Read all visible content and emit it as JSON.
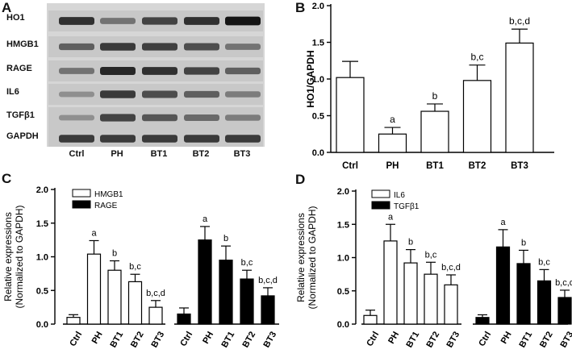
{
  "panels": {
    "A": {
      "letter": "A",
      "rows": [
        "HO1",
        "HMGB1",
        "RAGE",
        "IL6",
        "TGFβ1",
        "GAPDH"
      ],
      "lanes": [
        "Ctrl",
        "PH",
        "BT1",
        "BT2",
        "BT3"
      ],
      "band_intensity": [
        [
          0.8,
          0.45,
          0.7,
          0.8,
          0.95
        ],
        [
          0.55,
          0.75,
          0.72,
          0.65,
          0.45
        ],
        [
          0.45,
          0.85,
          0.8,
          0.7,
          0.55
        ],
        [
          0.3,
          0.75,
          0.65,
          0.55,
          0.4
        ],
        [
          0.3,
          0.7,
          0.6,
          0.5,
          0.4
        ],
        [
          0.75,
          0.75,
          0.75,
          0.75,
          0.75
        ]
      ]
    },
    "B": {
      "letter": "B"
    },
    "C": {
      "letter": "C"
    },
    "D": {
      "letter": "D"
    }
  },
  "chart_data": [
    {
      "id": "B",
      "type": "bar",
      "categories": [
        "Ctrl",
        "PH",
        "BT1",
        "BT2",
        "BT3"
      ],
      "series": [
        {
          "values": [
            1.02,
            0.25,
            0.56,
            0.98,
            1.49
          ],
          "errors": [
            0.22,
            0.09,
            0.1,
            0.21,
            0.19
          ],
          "color": "#ffffff"
        }
      ],
      "annotations": [
        "",
        "a",
        "b",
        "b,c",
        "b,c,d"
      ],
      "title": "",
      "xlabel": "",
      "ylabel": "HO1/GAPDH",
      "ylim": [
        0,
        2.0
      ],
      "yticks": [
        "0.0",
        "0.5",
        "1.0",
        "1.5",
        "2.0"
      ],
      "grid": false
    },
    {
      "id": "C",
      "type": "bar",
      "categories": [
        "Ctrl",
        "PH",
        "BT1",
        "BT2",
        "BT3"
      ],
      "series": [
        {
          "name": "HMGB1",
          "values": [
            0.1,
            1.04,
            0.8,
            0.63,
            0.25
          ],
          "errors": [
            0.04,
            0.2,
            0.14,
            0.11,
            0.1
          ],
          "color": "#ffffff",
          "annotations": [
            "",
            "a",
            "b",
            "b,c",
            "b,c,d"
          ]
        },
        {
          "name": "RAGE",
          "values": [
            0.15,
            1.25,
            0.95,
            0.67,
            0.42
          ],
          "errors": [
            0.09,
            0.2,
            0.21,
            0.13,
            0.12
          ],
          "color": "#000000",
          "annotations": [
            "",
            "a",
            "b",
            "b,c",
            "b,c,d"
          ]
        }
      ],
      "title": "",
      "xlabel": "",
      "ylabel": [
        "Relative expressions",
        "(Normalized to GAPDH)"
      ],
      "ylim": [
        0,
        2.0
      ],
      "yticks": [
        "0.0",
        "0.5",
        "1.0",
        "1.5",
        "2.0"
      ],
      "legend": "top-left",
      "grid": false
    },
    {
      "id": "D",
      "type": "bar",
      "categories": [
        "Ctrl",
        "PH",
        "BT1",
        "BT2",
        "BT3"
      ],
      "series": [
        {
          "name": "IL6",
          "values": [
            0.13,
            1.25,
            0.92,
            0.75,
            0.59
          ],
          "errors": [
            0.08,
            0.25,
            0.2,
            0.18,
            0.15
          ],
          "color": "#ffffff",
          "annotations": [
            "",
            "a",
            "b",
            "b,c",
            "b,c,d"
          ]
        },
        {
          "name": "TGFβ1",
          "values": [
            0.1,
            1.16,
            0.91,
            0.65,
            0.4
          ],
          "errors": [
            0.04,
            0.26,
            0.2,
            0.17,
            0.11
          ],
          "color": "#000000",
          "annotations": [
            "",
            "a",
            "b",
            "b,c",
            "b,c,d"
          ]
        }
      ],
      "title": "",
      "xlabel": "",
      "ylabel": [
        "Relative expressions",
        "(Normalized to GAPDH)"
      ],
      "ylim": [
        0,
        2.0
      ],
      "yticks": [
        "0.0",
        "0.5",
        "1.0",
        "1.5",
        "2.0"
      ],
      "legend": "top-left",
      "grid": false
    }
  ]
}
